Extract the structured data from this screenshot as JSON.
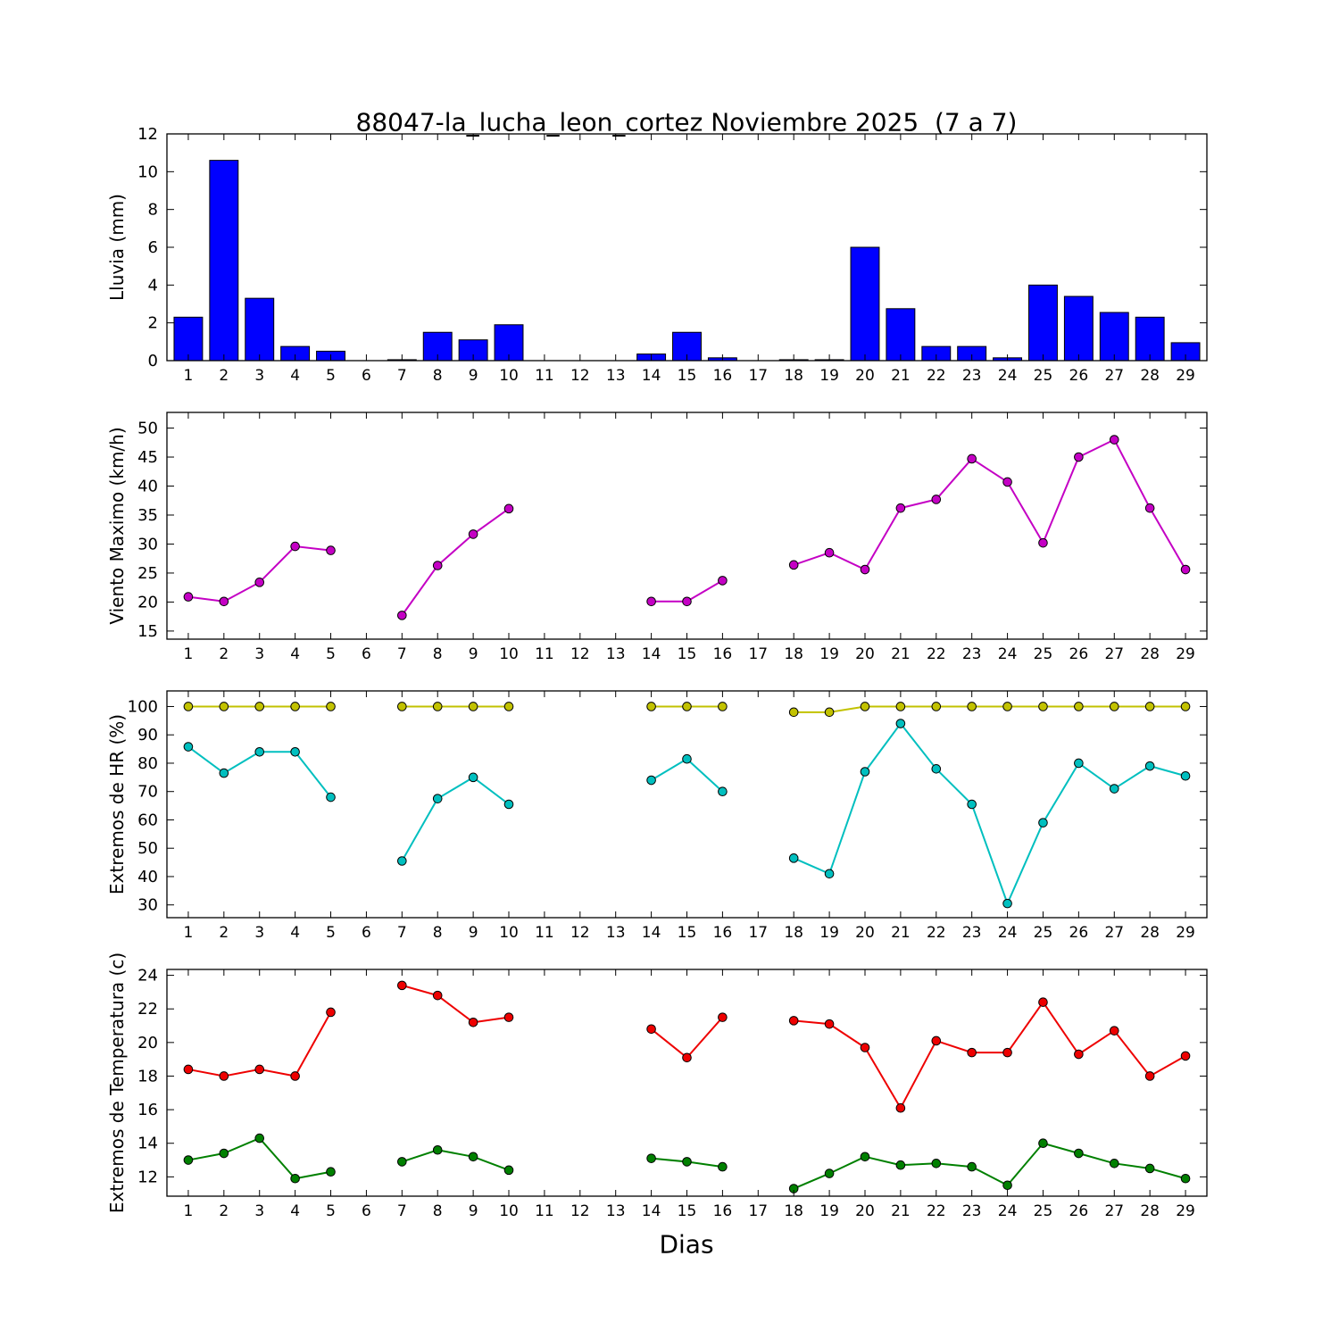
{
  "title": "88047-la_lucha_leon_cortez Noviembre 2025  (7 a 7)",
  "x_axis": {
    "label": "Dias",
    "days": [
      1,
      2,
      3,
      4,
      5,
      6,
      7,
      8,
      9,
      10,
      11,
      12,
      13,
      14,
      15,
      16,
      17,
      18,
      19,
      20,
      21,
      22,
      23,
      24,
      25,
      26,
      27,
      28,
      29
    ],
    "xlim": [
      0.4,
      29.6
    ]
  },
  "chart_data": [
    {
      "type": "bar",
      "name": "lluvia",
      "ylabel": "Lluvia (mm)",
      "ylim": [
        0,
        12
      ],
      "yticks": [
        0,
        2,
        4,
        6,
        8,
        10,
        12
      ],
      "color": "#0000ff",
      "categories": [
        1,
        2,
        3,
        4,
        5,
        6,
        7,
        8,
        9,
        10,
        11,
        12,
        13,
        14,
        15,
        16,
        17,
        18,
        19,
        20,
        21,
        22,
        23,
        24,
        25,
        26,
        27,
        28,
        29
      ],
      "values": [
        2.3,
        10.6,
        3.3,
        0.75,
        0.5,
        0,
        0.05,
        1.5,
        1.1,
        1.9,
        0,
        0,
        0,
        0.35,
        1.5,
        0.15,
        0,
        0.05,
        0.05,
        6.0,
        2.75,
        0.75,
        0.75,
        0.15,
        4.0,
        3.4,
        2.55,
        2.3,
        0.95
      ]
    },
    {
      "type": "line",
      "name": "viento",
      "ylabel": "Viento Maximo (km/h)",
      "ylim": [
        13.6,
        52.7
      ],
      "yticks": [
        15,
        20,
        25,
        30,
        35,
        40,
        45,
        50
      ],
      "series": [
        {
          "name": "viento_maximo",
          "color": "#c400c4",
          "values": [
            20.9,
            20.1,
            23.4,
            29.6,
            28.9,
            null,
            17.7,
            26.3,
            31.7,
            36.1,
            null,
            null,
            null,
            20.1,
            20.1,
            23.7,
            null,
            26.4,
            28.5,
            25.6,
            36.2,
            37.7,
            44.7,
            40.7,
            30.2,
            45.0,
            48.0,
            36.2,
            25.6
          ]
        }
      ]
    },
    {
      "type": "line",
      "name": "extremos-hr",
      "ylabel": "Extremos de HR (%)",
      "ylim": [
        25.5,
        105.5
      ],
      "yticks": [
        30,
        40,
        50,
        60,
        70,
        80,
        90,
        100
      ],
      "series": [
        {
          "name": "hr_maxima",
          "color": "#c2c200",
          "values": [
            100,
            100,
            100,
            100,
            100,
            null,
            100,
            100,
            100,
            100,
            null,
            null,
            null,
            100,
            100,
            100,
            null,
            98,
            98,
            100,
            100,
            100,
            100,
            100,
            100,
            100,
            100,
            100,
            100
          ]
        },
        {
          "name": "hr_minima",
          "color": "#00bfbf",
          "values": [
            85.8,
            76.5,
            84,
            84,
            68,
            null,
            45.5,
            67.5,
            75,
            65.5,
            null,
            null,
            null,
            74,
            81.5,
            70,
            null,
            46.5,
            41,
            77,
            94,
            78,
            65.5,
            30.5,
            59,
            80,
            71,
            79,
            75.5
          ]
        }
      ]
    },
    {
      "type": "line",
      "name": "extremos-temperatura",
      "ylabel": "Extremos de Temperatura (c)",
      "ylim": [
        10.85,
        24.35
      ],
      "yticks": [
        12,
        14,
        16,
        18,
        20,
        22,
        24
      ],
      "series": [
        {
          "name": "temp_maxima",
          "color": "#ee0000",
          "values": [
            18.4,
            18.0,
            18.4,
            18.0,
            21.8,
            null,
            23.4,
            22.8,
            21.2,
            21.5,
            null,
            null,
            null,
            20.8,
            19.1,
            21.5,
            null,
            21.3,
            21.1,
            19.7,
            16.1,
            20.1,
            19.4,
            19.4,
            22.4,
            19.3,
            20.7,
            18.0,
            19.2
          ]
        },
        {
          "name": "temp_minima",
          "color": "#008000",
          "values": [
            13.0,
            13.4,
            14.3,
            11.9,
            12.3,
            null,
            12.9,
            13.6,
            13.2,
            12.4,
            null,
            null,
            null,
            13.1,
            12.9,
            12.6,
            null,
            11.3,
            12.2,
            13.2,
            12.7,
            12.8,
            12.6,
            11.5,
            14.0,
            13.4,
            12.8,
            12.5,
            11.9
          ]
        }
      ]
    }
  ]
}
